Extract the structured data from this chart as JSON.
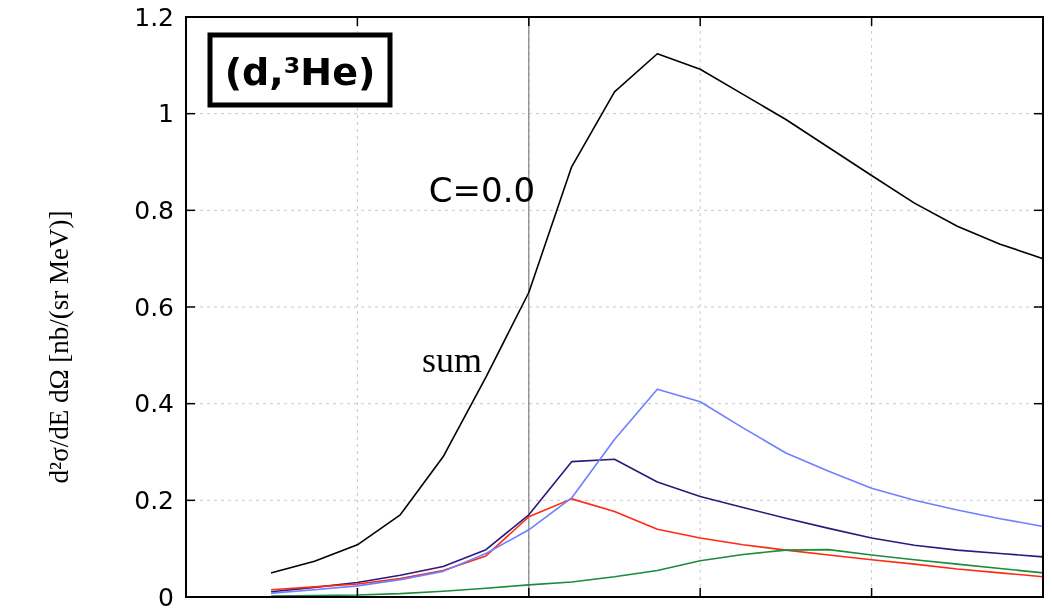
{
  "chart_data": {
    "type": "line",
    "ylabel": "d²σ/dE dΩ  [nb/(sr MeV)]",
    "annotations": [
      "(d,³He)",
      "C=0.0",
      "sum"
    ],
    "categories": [
      null,
      null,
      null,
      null,
      null,
      null,
      null,
      null,
      null,
      null,
      null,
      null,
      null,
      null,
      null,
      null,
      null,
      null,
      null,
      null,
      null
    ],
    "ylim": [
      0,
      1.2
    ],
    "yticks": [
      0,
      0.2,
      0.4,
      0.6,
      0.8,
      1,
      1.2
    ],
    "grid": true,
    "marker": "none",
    "line_style": "solid",
    "series": [
      {
        "color": "#000000",
        "values": [
          null,
          null,
          0.05,
          0.074,
          0.108,
          0.17,
          0.29,
          0.455,
          0.63,
          0.89,
          1.045,
          1.124,
          1.092,
          1.04,
          0.988,
          0.93,
          0.872,
          0.815,
          0.767,
          0.73,
          0.7
        ]
      },
      {
        "color": "#2b1a7a",
        "values": [
          null,
          null,
          0.011,
          0.02,
          0.03,
          0.045,
          0.063,
          0.098,
          0.17,
          0.28,
          0.285,
          0.238,
          0.208,
          0.185,
          0.163,
          0.142,
          0.122,
          0.107,
          0.097,
          0.09,
          0.083
        ]
      },
      {
        "color": "#ff2a10",
        "values": [
          null,
          null,
          0.015,
          0.021,
          0.027,
          0.038,
          0.055,
          0.085,
          0.166,
          0.203,
          0.177,
          0.14,
          0.122,
          0.108,
          0.097,
          0.087,
          0.077,
          0.068,
          0.058,
          0.05,
          0.042
        ]
      },
      {
        "color": "#6e7fff",
        "values": [
          null,
          null,
          0.008,
          0.015,
          0.023,
          0.036,
          0.053,
          0.09,
          0.139,
          0.205,
          0.326,
          0.43,
          0.404,
          0.35,
          0.298,
          0.26,
          0.225,
          0.2,
          0.18,
          0.162,
          0.146
        ]
      },
      {
        "color": "#1a8c3a",
        "values": [
          null,
          null,
          0.002,
          0.003,
          0.004,
          0.007,
          0.012,
          0.018,
          0.025,
          0.031,
          0.042,
          0.055,
          0.075,
          0.088,
          0.097,
          0.098,
          0.087,
          0.077,
          0.068,
          0.059,
          0.05
        ]
      }
    ]
  }
}
